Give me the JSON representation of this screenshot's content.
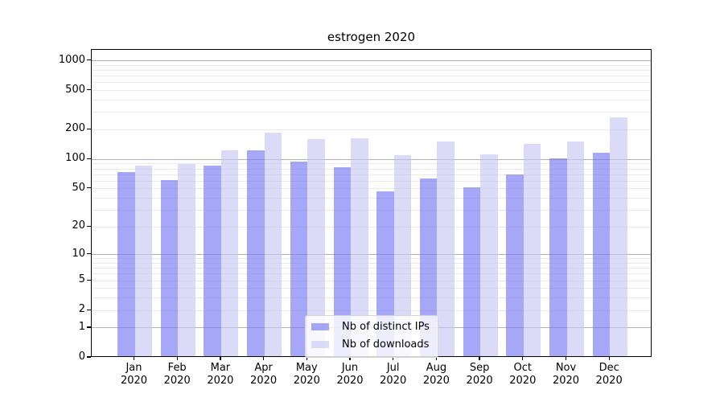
{
  "chart_data": {
    "type": "bar",
    "title": "estrogen 2020",
    "categories": [
      "Jan",
      "Feb",
      "Mar",
      "Apr",
      "May",
      "Jun",
      "Jul",
      "Aug",
      "Sep",
      "Oct",
      "Nov",
      "Dec"
    ],
    "year": "2020",
    "series": [
      {
        "name": "Nb of distinct IPs",
        "color": "#7878f5",
        "values": [
          72,
          59,
          83,
          119,
          92,
          80,
          45,
          61,
          50,
          68,
          98,
          112
        ]
      },
      {
        "name": "Nb of downloads",
        "color": "#c8c8f5",
        "values": [
          83,
          87,
          119,
          182,
          156,
          159,
          106,
          147,
          108,
          139,
          148,
          256
        ]
      }
    ],
    "bar_opacity": 0.65,
    "scale": "log10(1+x)",
    "yticks": [
      0,
      1,
      2,
      5,
      10,
      20,
      50,
      100,
      200,
      500,
      1000
    ],
    "ylim": [
      0,
      1280
    ],
    "grid": true,
    "major_grid_values": [
      1,
      10,
      100,
      1000
    ],
    "major_grid_color": "#b0b0b0",
    "minor_grid_color": "#e9e9e9",
    "legend_position": "bottom-center",
    "xlabel": "",
    "ylabel": ""
  }
}
